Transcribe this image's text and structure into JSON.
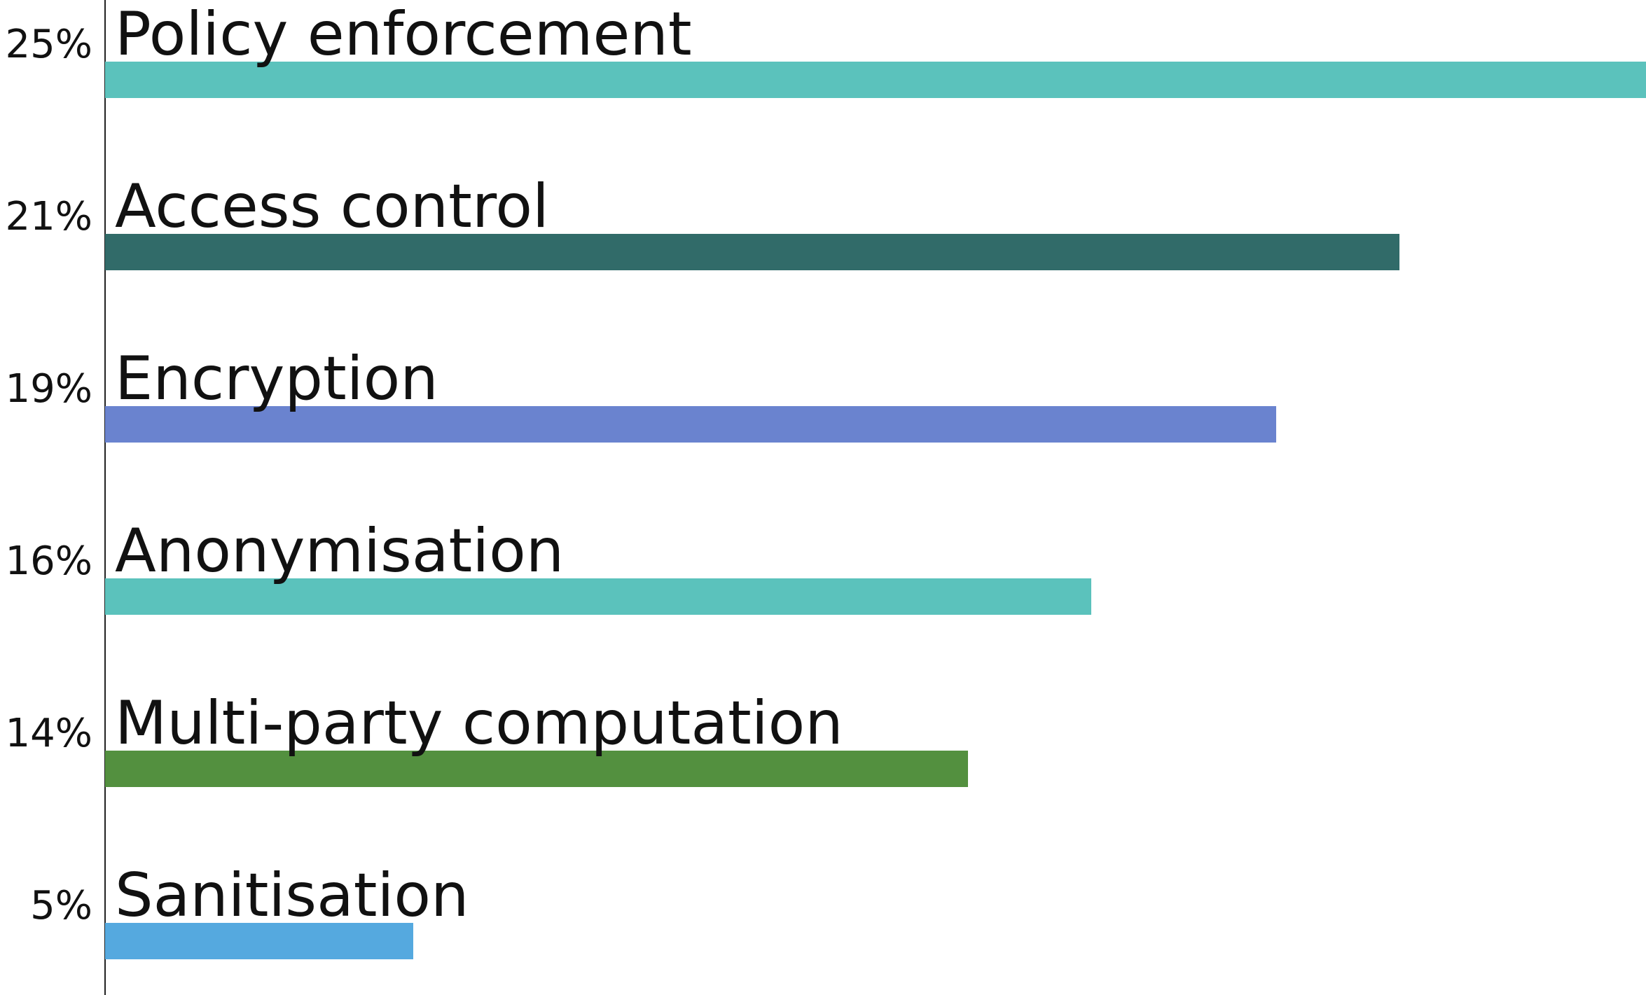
{
  "chart_data": {
    "type": "bar",
    "orientation": "horizontal",
    "categories": [
      "Policy enforcement",
      "Access control",
      "Encryption",
      "Anonymisation",
      "Multi-party computation",
      "Sanitisation"
    ],
    "values": [
      25,
      21,
      19,
      16,
      14,
      5
    ],
    "value_labels": [
      "25%",
      "21%",
      "19%",
      "16%",
      "14%",
      "5%"
    ],
    "colors": [
      "#5bc2bc",
      "#316b69",
      "#6a83cf",
      "#5bc2bc",
      "#53903f",
      "#55a9df"
    ],
    "xlim": [
      0,
      25
    ]
  }
}
